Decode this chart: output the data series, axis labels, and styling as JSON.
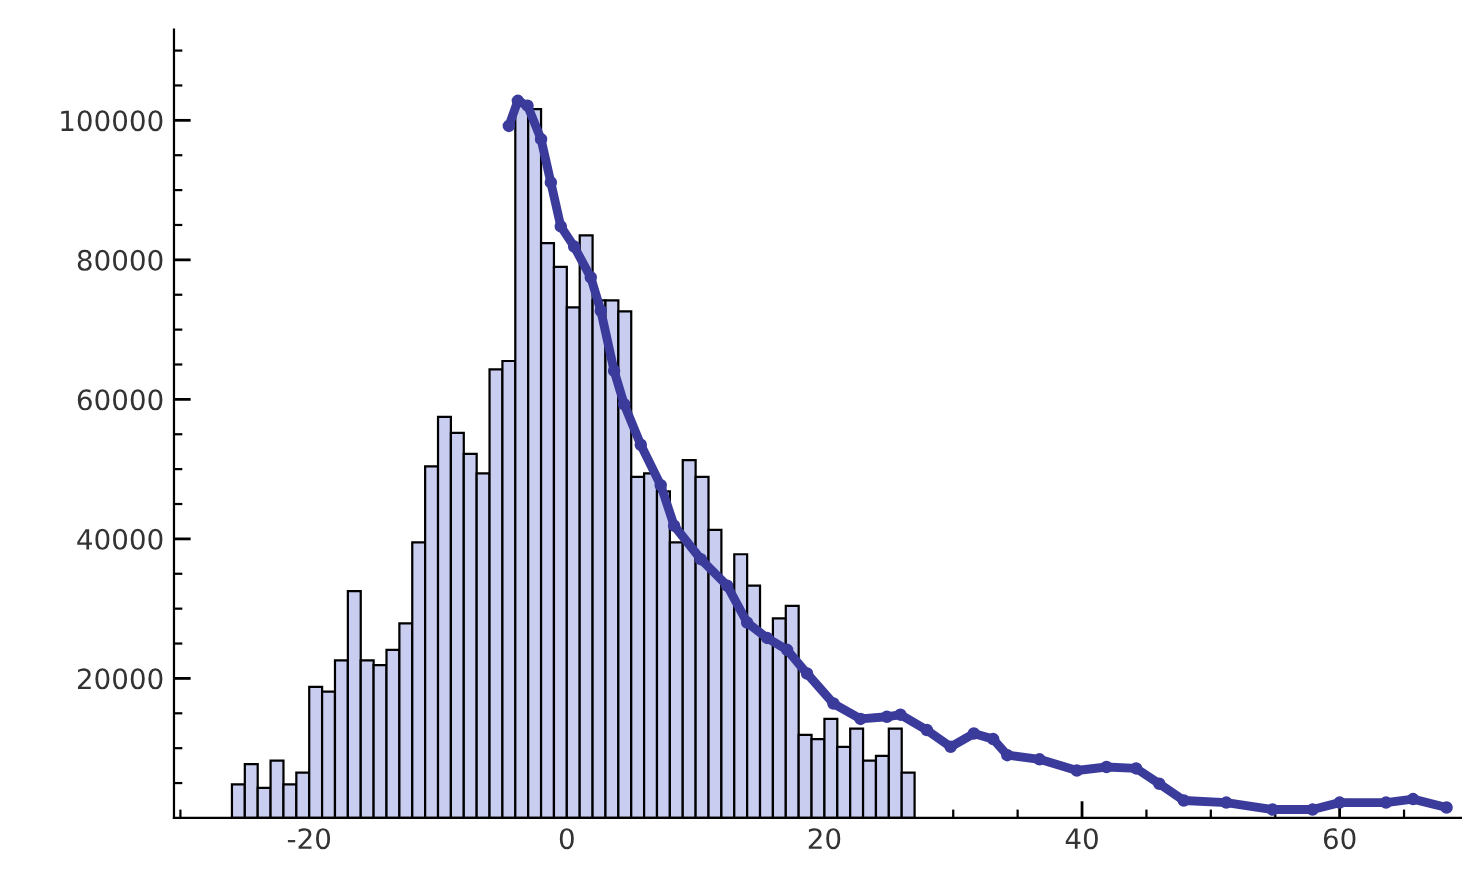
{
  "chart_data": {
    "type": "histogram",
    "bins": [
      -26,
      -25,
      -24,
      -23,
      -22,
      -21,
      -20,
      -19,
      -18,
      -17,
      -16,
      -15,
      -14,
      -13,
      -12,
      -11,
      -10,
      -9,
      -8,
      -7,
      -6,
      -5,
      -4,
      -3,
      -2,
      -1,
      0,
      1,
      2,
      3,
      4,
      5,
      6,
      7,
      8,
      9,
      10,
      11,
      12,
      13,
      14,
      15,
      16,
      17,
      18,
      19,
      20,
      21,
      22,
      23,
      24,
      25,
      26,
      27
    ],
    "values": [
      4800,
      7700,
      4300,
      8200,
      4800,
      6500,
      18800,
      18100,
      22600,
      32500,
      22600,
      21900,
      24100,
      27900,
      39500,
      50400,
      57500,
      55200,
      52200,
      49400,
      64300,
      65500,
      102600,
      101600,
      82400,
      79000,
      73200,
      83500,
      74200,
      74200,
      72600,
      48900,
      49400,
      46800,
      39500,
      51300,
      48900,
      41300,
      33300,
      37800,
      33300,
      26000,
      28600,
      30400,
      11900,
      11300,
      14200,
      10200,
      12800,
      8200,
      8900,
      12800,
      6500
    ],
    "color": "#c9cdf0",
    "series": [
      {
        "type": "line",
        "color": "#3b3b9c",
        "marker": "circle",
        "x": [
          -4.5,
          -3.8,
          -3.05,
          -2.0,
          -1.24,
          -0.47,
          0.57,
          1.86,
          2.64,
          3.67,
          4.45,
          5.74,
          7.29,
          8.33,
          10.4,
          12.45,
          14.0,
          15.55,
          17.1,
          18.65,
          20.7,
          22.8,
          24.85,
          25.9,
          27.95,
          29.8,
          31.6,
          33.1,
          34.2,
          36.7,
          39.6,
          41.9,
          44.2,
          46.0,
          47.9,
          51.2,
          54.8,
          57.9,
          60.0,
          63.6,
          65.7,
          68.3
        ],
        "values": [
          99200,
          102800,
          102100,
          97300,
          91100,
          84800,
          81900,
          77500,
          72700,
          64100,
          59300,
          53500,
          47700,
          41900,
          37100,
          33300,
          28000,
          25800,
          24100,
          20700,
          16400,
          14200,
          14500,
          14800,
          12600,
          10200,
          12100,
          11300,
          9000,
          8400,
          6800,
          7300,
          7100,
          4900,
          2500,
          2200,
          1200,
          1200,
          2200,
          2200,
          2700,
          1500
        ]
      }
    ],
    "xlim": [
      -30.5,
      69.5
    ],
    "ylim": [
      0,
      113000
    ],
    "xticks": [
      {
        "value": -30,
        "label": null
      },
      {
        "value": -25,
        "label": null
      },
      -20,
      {
        "value": -15,
        "label": null
      },
      {
        "value": -10,
        "label": null
      },
      {
        "value": -5,
        "label": null
      },
      0,
      {
        "value": 5,
        "label": null
      },
      {
        "value": 10,
        "label": null
      },
      {
        "value": 15,
        "label": null
      },
      20,
      {
        "value": 25,
        "label": null
      },
      {
        "value": 30,
        "label": null
      },
      {
        "value": 35,
        "label": null
      },
      40,
      {
        "value": 45,
        "label": null
      },
      {
        "value": 50,
        "label": null
      },
      {
        "value": 55,
        "label": null
      },
      60,
      {
        "value": 65,
        "label": null
      }
    ],
    "yticks": [
      {
        "value": 5000,
        "label": null
      },
      {
        "value": 10000,
        "label": null
      },
      {
        "value": 15000,
        "label": null
      },
      20000,
      {
        "value": 25000,
        "label": null
      },
      {
        "value": 30000,
        "label": null
      },
      {
        "value": 35000,
        "label": null
      },
      40000,
      {
        "value": 45000,
        "label": null
      },
      {
        "value": 50000,
        "label": null
      },
      {
        "value": 55000,
        "label": null
      },
      60000,
      {
        "value": 65000,
        "label": null
      },
      {
        "value": 70000,
        "label": null
      },
      {
        "value": 75000,
        "label": null
      },
      80000,
      {
        "value": 85000,
        "label": null
      },
      {
        "value": 90000,
        "label": null
      },
      {
        "value": 95000,
        "label": null
      },
      100000,
      {
        "value": 105000,
        "label": null
      },
      {
        "value": 110000,
        "label": null
      }
    ],
    "grid": false,
    "legend": false
  }
}
